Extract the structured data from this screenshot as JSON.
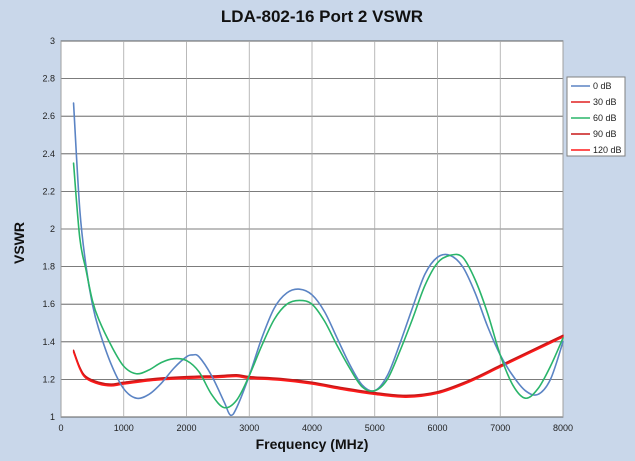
{
  "chart_data": {
    "type": "line",
    "title": "LDA-802-16 Port 2 VSWR",
    "xlabel": "Frequency (MHz)",
    "ylabel": "VSWR",
    "xlim": [
      0,
      8000
    ],
    "ylim": [
      1,
      3
    ],
    "xticks": [
      0,
      1000,
      2000,
      3000,
      4000,
      5000,
      6000,
      7000,
      8000
    ],
    "yticks": [
      1,
      1.2,
      1.4,
      1.6,
      1.8,
      2,
      2.2,
      2.4,
      2.6,
      2.8,
      3
    ],
    "grid": true,
    "legend_position": "right",
    "series": [
      {
        "name": "0 dB",
        "color": "#5b84c4",
        "x": [
          200,
          300,
          400,
          500,
          600,
          800,
          1000,
          1200,
          1400,
          1600,
          1800,
          2000,
          2100,
          2200,
          2400,
          2600,
          2700,
          2800,
          3000,
          3200,
          3400,
          3600,
          3800,
          4000,
          4200,
          4400,
          4600,
          4800,
          5000,
          5200,
          5400,
          5600,
          5800,
          6000,
          6200,
          6400,
          6600,
          6800,
          7000,
          7200,
          7400,
          7600,
          7800,
          8000
        ],
        "y": [
          2.67,
          2.1,
          1.8,
          1.6,
          1.47,
          1.28,
          1.15,
          1.1,
          1.12,
          1.18,
          1.26,
          1.32,
          1.33,
          1.32,
          1.22,
          1.08,
          1.01,
          1.05,
          1.22,
          1.42,
          1.58,
          1.66,
          1.68,
          1.65,
          1.56,
          1.42,
          1.28,
          1.17,
          1.14,
          1.22,
          1.39,
          1.58,
          1.76,
          1.85,
          1.86,
          1.8,
          1.66,
          1.48,
          1.33,
          1.22,
          1.14,
          1.12,
          1.2,
          1.4
        ]
      },
      {
        "name": "30 dB",
        "color": "#e02020",
        "x": [
          200,
          300,
          400,
          600,
          800,
          1000,
          1500,
          2000,
          2500,
          2800,
          3000,
          3500,
          4000,
          4500,
          5000,
          5500,
          6000,
          6500,
          7000,
          7500,
          8000
        ],
        "y": [
          1.35,
          1.26,
          1.21,
          1.18,
          1.17,
          1.18,
          1.2,
          1.21,
          1.215,
          1.22,
          1.21,
          1.2,
          1.18,
          1.15,
          1.125,
          1.11,
          1.13,
          1.19,
          1.27,
          1.35,
          1.43
        ]
      },
      {
        "name": "60 dB",
        "color": "#2ab56a",
        "x": [
          200,
          300,
          400,
          500,
          600,
          800,
          1000,
          1200,
          1400,
          1600,
          1800,
          2000,
          2200,
          2400,
          2600,
          2800,
          3000,
          3200,
          3400,
          3600,
          3800,
          4000,
          4200,
          4400,
          4600,
          4800,
          5000,
          5200,
          5400,
          5600,
          5800,
          6000,
          6200,
          6400,
          6600,
          6800,
          7000,
          7200,
          7400,
          7600,
          7800,
          8000
        ],
        "y": [
          2.35,
          1.95,
          1.78,
          1.62,
          1.52,
          1.38,
          1.27,
          1.23,
          1.25,
          1.29,
          1.31,
          1.3,
          1.24,
          1.12,
          1.05,
          1.09,
          1.22,
          1.38,
          1.52,
          1.6,
          1.62,
          1.6,
          1.51,
          1.38,
          1.26,
          1.16,
          1.14,
          1.2,
          1.35,
          1.52,
          1.7,
          1.82,
          1.86,
          1.85,
          1.73,
          1.55,
          1.33,
          1.17,
          1.1,
          1.15,
          1.27,
          1.42
        ]
      },
      {
        "name": "90 dB",
        "color": "#c81818",
        "x": [
          200,
          300,
          400,
          600,
          800,
          1000,
          1500,
          2000,
          2500,
          2800,
          3000,
          3500,
          4000,
          4500,
          5000,
          5500,
          6000,
          6500,
          7000,
          7500,
          8000
        ],
        "y": [
          1.355,
          1.265,
          1.215,
          1.185,
          1.175,
          1.185,
          1.205,
          1.215,
          1.22,
          1.225,
          1.215,
          1.205,
          1.185,
          1.155,
          1.13,
          1.115,
          1.135,
          1.195,
          1.275,
          1.355,
          1.435
        ]
      },
      {
        "name": "120 dB",
        "color": "#ff1a1a",
        "x": [
          200,
          300,
          400,
          600,
          800,
          1000,
          1500,
          2000,
          2500,
          2800,
          3000,
          3500,
          4000,
          4500,
          5000,
          5500,
          6000,
          6500,
          7000,
          7500,
          8000
        ],
        "y": [
          1.345,
          1.255,
          1.205,
          1.175,
          1.165,
          1.175,
          1.195,
          1.205,
          1.21,
          1.215,
          1.205,
          1.195,
          1.175,
          1.145,
          1.12,
          1.105,
          1.125,
          1.185,
          1.265,
          1.345,
          1.425
        ]
      }
    ]
  }
}
